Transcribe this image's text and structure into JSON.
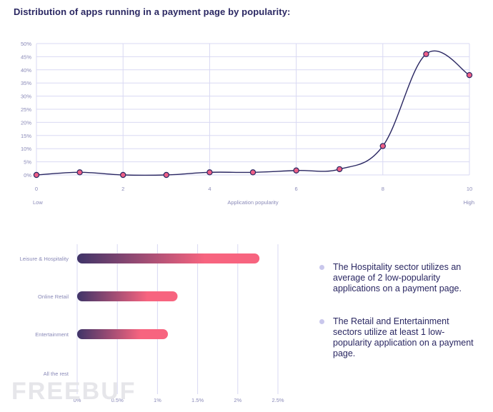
{
  "title": "Distribution of apps running in a payment page by popularity:",
  "chart_data": [
    {
      "type": "line",
      "title": "Distribution of apps running in a payment page by popularity:",
      "x": [
        0,
        1,
        2,
        3,
        4,
        5,
        6,
        7,
        8,
        9,
        10
      ],
      "values": [
        0,
        1,
        0,
        0,
        1,
        1,
        1.7,
        2.2,
        11,
        46,
        38
      ],
      "xlim": [
        0,
        10
      ],
      "ylim": [
        0,
        50
      ],
      "x_ticks": [
        "0",
        "2",
        "4",
        "6",
        "8",
        "10"
      ],
      "y_ticks": [
        "0%",
        "5%",
        "10%",
        "15%",
        "20%",
        "25%",
        "30%",
        "35%",
        "40%",
        "45%",
        "50%"
      ],
      "xlabel": "Application popularity",
      "x_end_labels": {
        "low": "Low",
        "high": "High"
      },
      "grid": true,
      "colors": {
        "line": "#2a2762",
        "marker": "#ee5f86",
        "grid": "#d9d9f3",
        "text": "#8a8ab8"
      }
    },
    {
      "type": "bar",
      "orientation": "horizontal",
      "categories": [
        "Leisure & Hospitality",
        "Online Retail",
        "Entertainment",
        "All the rest"
      ],
      "values": [
        2.27,
        1.25,
        1.13,
        0
      ],
      "xlim": [
        0,
        2.5
      ],
      "x_ticks": [
        "0%",
        "0.5%",
        "1%",
        "1.5%",
        "2%",
        "2.5%"
      ],
      "grid": true,
      "colors": {
        "gradient_start": "#3f3468",
        "gradient_end": "#f7647f",
        "grid": "#d9d9f3",
        "text": "#8a8ab8"
      }
    }
  ],
  "notes": [
    "The Hospitality sector utilizes an average of 2 low-popularity applications on a payment page.",
    "The Retail and Entertainment sectors utilize at least 1 low-popularity application on a payment page."
  ],
  "watermark": "FREEBUF"
}
